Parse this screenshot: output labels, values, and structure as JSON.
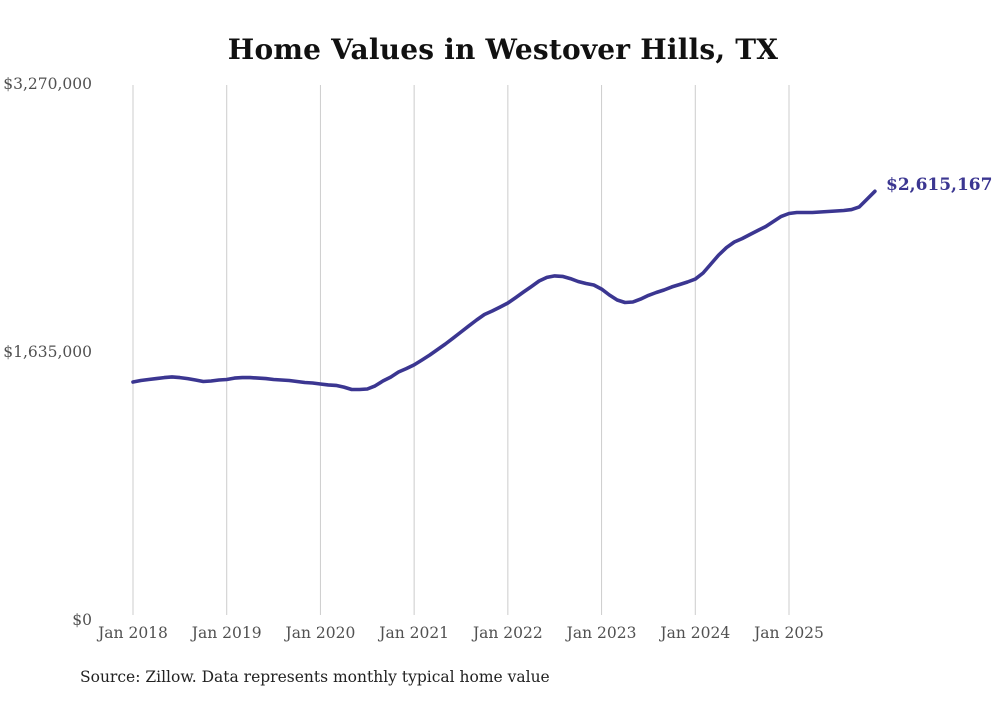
{
  "colors": {
    "line": "#3b3691",
    "grid": "#cccccc",
    "axis_label": "#515151",
    "title": "#111111",
    "source": "#222222"
  },
  "chart_data": {
    "type": "line",
    "title": "Home Values in Westover Hills, TX",
    "footnote": "Source: Zillow. Data represents monthly typical home value",
    "xlabel": "",
    "ylabel": "",
    "x_start": "2018-01",
    "x_interval": "monthly",
    "x_tick_labels": [
      "Jan 2018",
      "Jan 2019",
      "Jan 2020",
      "Jan 2021",
      "Jan 2022",
      "Jan 2023",
      "Jan 2024",
      "Jan 2025"
    ],
    "y_tick_labels": [
      "$0",
      "$1,635,000",
      "$3,270,000"
    ],
    "ylim": [
      0,
      3270000
    ],
    "grid": "vertical-yearly",
    "legend": "none",
    "end_label": "$2,615,167",
    "final_value": 2615167,
    "values": [
      1452000,
      1461000,
      1467000,
      1473000,
      1479000,
      1483000,
      1479000,
      1473000,
      1464000,
      1455000,
      1458000,
      1464000,
      1467000,
      1476000,
      1479000,
      1479000,
      1476000,
      1473000,
      1467000,
      1464000,
      1461000,
      1455000,
      1449000,
      1446000,
      1440000,
      1434000,
      1431000,
      1421000,
      1406000,
      1406000,
      1409000,
      1428000,
      1458000,
      1482000,
      1513000,
      1534000,
      1556000,
      1586000,
      1617000,
      1650000,
      1684000,
      1720000,
      1757000,
      1794000,
      1830000,
      1864000,
      1885000,
      1909000,
      1934000,
      1967000,
      2001000,
      2034000,
      2068000,
      2090000,
      2099000,
      2096000,
      2083000,
      2065000,
      2053000,
      2044000,
      2019000,
      1983000,
      1952000,
      1937000,
      1940000,
      1958000,
      1980000,
      1998000,
      2013000,
      2032000,
      2047000,
      2062000,
      2080000,
      2117000,
      2172000,
      2227000,
      2272000,
      2306000,
      2327000,
      2352000,
      2376000,
      2400000,
      2431000,
      2462000,
      2480000,
      2486000,
      2486000,
      2486000,
      2489000,
      2492000,
      2495000,
      2498000,
      2504000,
      2520000,
      2568000,
      2615167
    ]
  }
}
